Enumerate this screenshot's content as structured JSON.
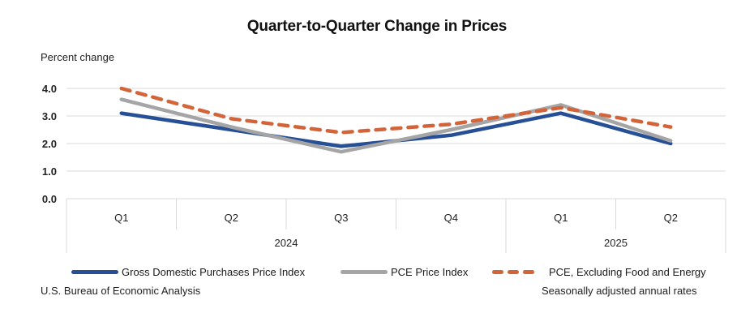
{
  "chart_data": {
    "type": "line",
    "title": "Quarter-to-Quarter Change in Prices",
    "ylabel": "Percent change",
    "xlabel": "",
    "ylim": [
      0,
      4.0
    ],
    "yticks": [
      "0.0",
      "1.0",
      "2.0",
      "3.0",
      "4.0"
    ],
    "grid": true,
    "categories": [
      "Q1",
      "Q2",
      "Q3",
      "Q4",
      "Q1",
      "Q2"
    ],
    "category_groups": [
      {
        "label": "2024",
        "span": 4
      },
      {
        "label": "2025",
        "span": 2
      }
    ],
    "series": [
      {
        "name": "Gross Domestic Purchases Price Index",
        "color": "#264F96",
        "style": "solid",
        "values": [
          3.1,
          2.5,
          1.9,
          2.3,
          3.1,
          2.0
        ]
      },
      {
        "name": "PCE Price Index",
        "color": "#A5A5A5",
        "style": "solid",
        "values": [
          3.6,
          2.6,
          1.7,
          2.5,
          3.4,
          2.1
        ]
      },
      {
        "name": "PCE, Excluding Food and Energy",
        "color": "#D3643A",
        "style": "dashed",
        "values": [
          4.0,
          2.9,
          2.4,
          2.7,
          3.3,
          2.6
        ]
      }
    ],
    "legend_position": "bottom"
  },
  "footer": {
    "source": "U.S. Bureau of Economic Analysis",
    "note": "Seasonally adjusted annual rates"
  }
}
